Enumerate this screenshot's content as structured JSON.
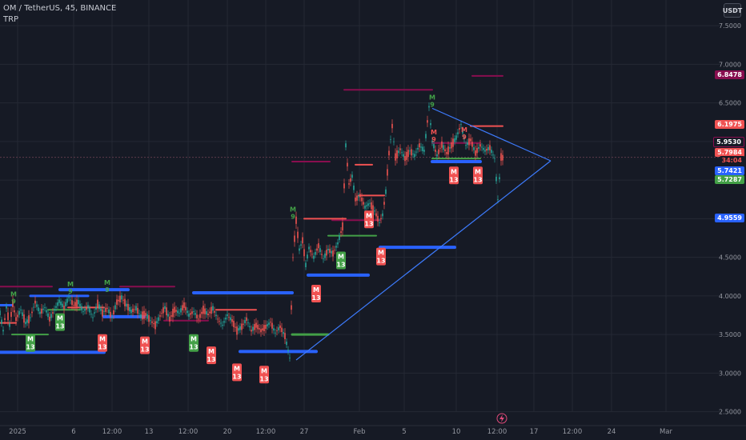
{
  "header": {
    "symbol_line": "OM / TetherUS, 45, BINANCE",
    "indicator": "TRP"
  },
  "currency_button": "USDT",
  "colors": {
    "background": "#161a25",
    "grid": "#242834",
    "candle_up": "#26a69a",
    "candle_down": "#ef5350",
    "blue_line": "#2962ff",
    "trend_line": "#3d7bfd",
    "red_line": "#f05252",
    "maroon_line": "#880e4f",
    "green_line": "#43a047",
    "red_flag": "#f05252",
    "green_flag": "#43a047",
    "dashed": "#5d3a4a"
  },
  "chart_data": {
    "type": "candlestick",
    "title": "OM / TetherUS, 45, BINANCE",
    "ylim": [
      2.4,
      7.75
    ],
    "y_ticks": [
      "7.5000",
      "7.0000",
      "6.5000",
      "6.0000",
      "5.5000",
      "5.0000",
      "4.5000",
      "4.0000",
      "3.5000",
      "3.0000",
      "2.5000"
    ],
    "x_ticks": [
      "2025",
      "6",
      "12:00",
      "13",
      "12:00",
      "20",
      "12:00",
      "27",
      "Feb",
      "5",
      "10",
      "12:00",
      "17",
      "12:00",
      "24",
      "Mar"
    ],
    "price_labels": [
      {
        "value": "6.8478",
        "color": "#880e4f"
      },
      {
        "value": "6.1975",
        "color": "#f05252"
      },
      {
        "value": "5.9530",
        "color": "#880e4f"
      },
      {
        "value": "5.7984",
        "color": "#f05252"
      },
      {
        "value": "34:04",
        "color": "#f05252"
      },
      {
        "value": "5.7421",
        "color": "#2962ff"
      },
      {
        "value": "5.7287",
        "color": "#43a047"
      },
      {
        "value": "4.9559",
        "color": "#2962ff"
      }
    ],
    "price_path": [
      [
        0,
        3.78
      ],
      [
        4,
        3.55
      ],
      [
        8,
        3.85
      ],
      [
        12,
        3.62
      ],
      [
        16,
        3.9
      ],
      [
        20,
        3.7
      ],
      [
        26,
        3.82
      ],
      [
        32,
        3.65
      ],
      [
        38,
        3.72
      ],
      [
        44,
        3.92
      ],
      [
        50,
        3.78
      ],
      [
        56,
        3.85
      ],
      [
        62,
        3.7
      ],
      [
        68,
        3.82
      ],
      [
        74,
        3.93
      ],
      [
        80,
        3.85
      ],
      [
        86,
        3.98
      ],
      [
        92,
        3.88
      ],
      [
        98,
        3.92
      ],
      [
        104,
        3.8
      ],
      [
        110,
        3.86
      ],
      [
        116,
        3.72
      ],
      [
        122,
        3.9
      ],
      [
        128,
        3.78
      ],
      [
        134,
        3.84
      ],
      [
        140,
        3.72
      ],
      [
        146,
        3.92
      ],
      [
        152,
        3.98
      ],
      [
        158,
        3.88
      ],
      [
        164,
        3.8
      ],
      [
        170,
        3.84
      ],
      [
        176,
        3.74
      ],
      [
        182,
        3.76
      ],
      [
        188,
        3.68
      ],
      [
        194,
        3.62
      ],
      [
        200,
        3.74
      ],
      [
        206,
        3.85
      ],
      [
        212,
        3.7
      ],
      [
        218,
        3.82
      ],
      [
        224,
        3.78
      ],
      [
        230,
        3.88
      ],
      [
        236,
        3.75
      ],
      [
        242,
        3.8
      ],
      [
        248,
        3.7
      ],
      [
        254,
        3.82
      ],
      [
        260,
        3.76
      ],
      [
        266,
        3.84
      ],
      [
        272,
        3.7
      ],
      [
        278,
        3.62
      ],
      [
        284,
        3.75
      ],
      [
        290,
        3.68
      ],
      [
        296,
        3.55
      ],
      [
        302,
        3.6
      ],
      [
        308,
        3.7
      ],
      [
        314,
        3.55
      ],
      [
        320,
        3.62
      ],
      [
        326,
        3.55
      ],
      [
        332,
        3.6
      ],
      [
        338,
        3.66
      ],
      [
        344,
        3.52
      ],
      [
        350,
        3.6
      ],
      [
        356,
        3.48
      ],
      [
        362,
        3.2
      ],
      [
        366,
        4.5
      ],
      [
        370,
        4.98
      ],
      [
        374,
        4.6
      ],
      [
        378,
        4.72
      ],
      [
        382,
        4.4
      ],
      [
        386,
        4.62
      ],
      [
        392,
        4.5
      ],
      [
        398,
        4.65
      ],
      [
        404,
        4.48
      ],
      [
        410,
        4.6
      ],
      [
        416,
        4.55
      ],
      [
        422,
        4.68
      ],
      [
        428,
        4.9
      ],
      [
        432,
        5.95
      ],
      [
        436,
        5.45
      ],
      [
        440,
        5.55
      ],
      [
        444,
        5.25
      ],
      [
        450,
        5.3
      ],
      [
        456,
        5.15
      ],
      [
        462,
        5.2
      ],
      [
        468,
        5.1
      ],
      [
        474,
        4.95
      ],
      [
        478,
        5.05
      ],
      [
        482,
        5.35
      ],
      [
        486,
        5.85
      ],
      [
        490,
        6.2
      ],
      [
        494,
        5.8
      ],
      [
        500,
        5.9
      ],
      [
        506,
        5.78
      ],
      [
        512,
        5.88
      ],
      [
        518,
        5.82
      ],
      [
        524,
        5.95
      ],
      [
        530,
        5.88
      ],
      [
        536,
        6.45
      ],
      [
        540,
        6.0
      ],
      [
        546,
        5.82
      ],
      [
        552,
        5.96
      ],
      [
        558,
        5.85
      ],
      [
        564,
        5.95
      ],
      [
        570,
        6.05
      ],
      [
        576,
        6.22
      ],
      [
        582,
        5.95
      ],
      [
        588,
        6.02
      ],
      [
        594,
        5.85
      ],
      [
        600,
        5.95
      ],
      [
        606,
        5.88
      ],
      [
        612,
        5.92
      ],
      [
        618,
        5.78
      ],
      [
        622,
        5.25
      ],
      [
        626,
        5.8
      ],
      [
        630,
        5.78
      ]
    ],
    "horizontal_lines": [
      {
        "color": "#2962ff",
        "x1": 0,
        "x2": 130,
        "y": 3.27,
        "w": 4
      },
      {
        "color": "#2962ff",
        "x1": 0,
        "x2": 15,
        "y": 3.88,
        "w": 3
      },
      {
        "color": "#2962ff",
        "x1": 38,
        "x2": 110,
        "y": 4.0,
        "w": 3
      },
      {
        "color": "#2962ff",
        "x1": 75,
        "x2": 160,
        "y": 4.08,
        "w": 4
      },
      {
        "color": "#2962ff",
        "x1": 130,
        "x2": 180,
        "y": 3.73,
        "w": 4
      },
      {
        "color": "#2962ff",
        "x1": 242,
        "x2": 365,
        "y": 4.04,
        "w": 4
      },
      {
        "color": "#2962ff",
        "x1": 300,
        "x2": 395,
        "y": 3.28,
        "w": 4
      },
      {
        "color": "#2962ff",
        "x1": 385,
        "x2": 460,
        "y": 4.27,
        "w": 4
      },
      {
        "color": "#2962ff",
        "x1": 475,
        "x2": 568,
        "y": 4.63,
        "w": 4
      },
      {
        "color": "#2962ff",
        "x1": 540,
        "x2": 600,
        "y": 5.74,
        "w": 4
      },
      {
        "color": "#880e4f",
        "x1": 0,
        "x2": 65,
        "y": 4.12,
        "w": 2
      },
      {
        "color": "#880e4f",
        "x1": 150,
        "x2": 218,
        "y": 4.12,
        "w": 2
      },
      {
        "color": "#880e4f",
        "x1": 365,
        "x2": 412,
        "y": 5.74,
        "w": 2
      },
      {
        "color": "#880e4f",
        "x1": 430,
        "x2": 540,
        "y": 6.67,
        "w": 2
      },
      {
        "color": "#880e4f",
        "x1": 590,
        "x2": 628,
        "y": 6.85,
        "w": 2
      },
      {
        "color": "#880e4f",
        "x1": 540,
        "x2": 600,
        "y": 5.98,
        "w": 2
      },
      {
        "color": "#880e4f",
        "x1": 205,
        "x2": 260,
        "y": 3.68,
        "w": 2
      },
      {
        "color": "#880e4f",
        "x1": 415,
        "x2": 475,
        "y": 4.98,
        "w": 2
      },
      {
        "color": "#f05252",
        "x1": 0,
        "x2": 20,
        "y": 3.65,
        "w": 2
      },
      {
        "color": "#f05252",
        "x1": 85,
        "x2": 130,
        "y": 3.85,
        "w": 2
      },
      {
        "color": "#f05252",
        "x1": 270,
        "x2": 320,
        "y": 3.82,
        "w": 2
      },
      {
        "color": "#f05252",
        "x1": 380,
        "x2": 432,
        "y": 5.0,
        "w": 2
      },
      {
        "color": "#f05252",
        "x1": 444,
        "x2": 465,
        "y": 5.7,
        "w": 2
      },
      {
        "color": "#f05252",
        "x1": 588,
        "x2": 628,
        "y": 6.2,
        "w": 2
      },
      {
        "color": "#f05252",
        "x1": 448,
        "x2": 480,
        "y": 5.3,
        "w": 2
      },
      {
        "color": "#43a047",
        "x1": 15,
        "x2": 60,
        "y": 3.5,
        "w": 2
      },
      {
        "color": "#43a047",
        "x1": 60,
        "x2": 100,
        "y": 3.82,
        "w": 2
      },
      {
        "color": "#43a047",
        "x1": 365,
        "x2": 410,
        "y": 3.5,
        "w": 3
      },
      {
        "color": "#43a047",
        "x1": 410,
        "x2": 470,
        "y": 4.78,
        "w": 2
      },
      {
        "color": "#43a047",
        "x1": 540,
        "x2": 600,
        "y": 5.78,
        "w": 2
      }
    ],
    "trend_lines": [
      {
        "x1": 370,
        "y1": 3.17,
        "x2": 688,
        "y2": 5.75
      },
      {
        "x1": 540,
        "y1": 6.43,
        "x2": 688,
        "y2": 5.75
      }
    ],
    "flags": [
      {
        "x": 38,
        "y": 3.38,
        "color": "#43a047",
        "t1": "M",
        "t2": "13"
      },
      {
        "x": 75,
        "y": 3.65,
        "color": "#43a047",
        "t1": "M",
        "t2": "13"
      },
      {
        "x": 128,
        "y": 3.38,
        "color": "#f05252",
        "t1": "M",
        "t2": "13"
      },
      {
        "x": 181,
        "y": 3.35,
        "color": "#f05252",
        "t1": "M",
        "t2": "13"
      },
      {
        "x": 242,
        "y": 3.38,
        "color": "#43a047",
        "t1": "M",
        "t2": "13"
      },
      {
        "x": 264,
        "y": 3.22,
        "color": "#f05252",
        "t1": "M",
        "t2": "13"
      },
      {
        "x": 296,
        "y": 3.0,
        "color": "#f05252",
        "t1": "M",
        "t2": "13"
      },
      {
        "x": 330,
        "y": 2.97,
        "color": "#f05252",
        "t1": "M",
        "t2": "13"
      },
      {
        "x": 395,
        "y": 4.02,
        "color": "#f05252",
        "t1": "M",
        "t2": "13"
      },
      {
        "x": 426,
        "y": 4.45,
        "color": "#43a047",
        "t1": "M",
        "t2": "13"
      },
      {
        "x": 461,
        "y": 4.98,
        "color": "#f05252",
        "t1": "M",
        "t2": "13"
      },
      {
        "x": 476,
        "y": 4.5,
        "color": "#f05252",
        "t1": "M",
        "t2": "13"
      },
      {
        "x": 567,
        "y": 5.55,
        "color": "#f05252",
        "t1": "M",
        "t2": "13"
      },
      {
        "x": 597,
        "y": 5.55,
        "color": "#f05252",
        "t1": "M",
        "t2": "13"
      }
    ],
    "markers_9": [
      {
        "x": 17,
        "y": 3.95,
        "color": "#43a047"
      },
      {
        "x": 88,
        "y": 4.08,
        "color": "#43a047"
      },
      {
        "x": 134,
        "y": 4.1,
        "color": "#43a047"
      },
      {
        "x": 366,
        "y": 5.05,
        "color": "#43a047"
      },
      {
        "x": 540,
        "y": 6.5,
        "color": "#43a047"
      },
      {
        "x": 542,
        "y": 6.05,
        "color": "#f05252"
      },
      {
        "x": 580,
        "y": 6.08,
        "color": "#f05252"
      }
    ]
  }
}
